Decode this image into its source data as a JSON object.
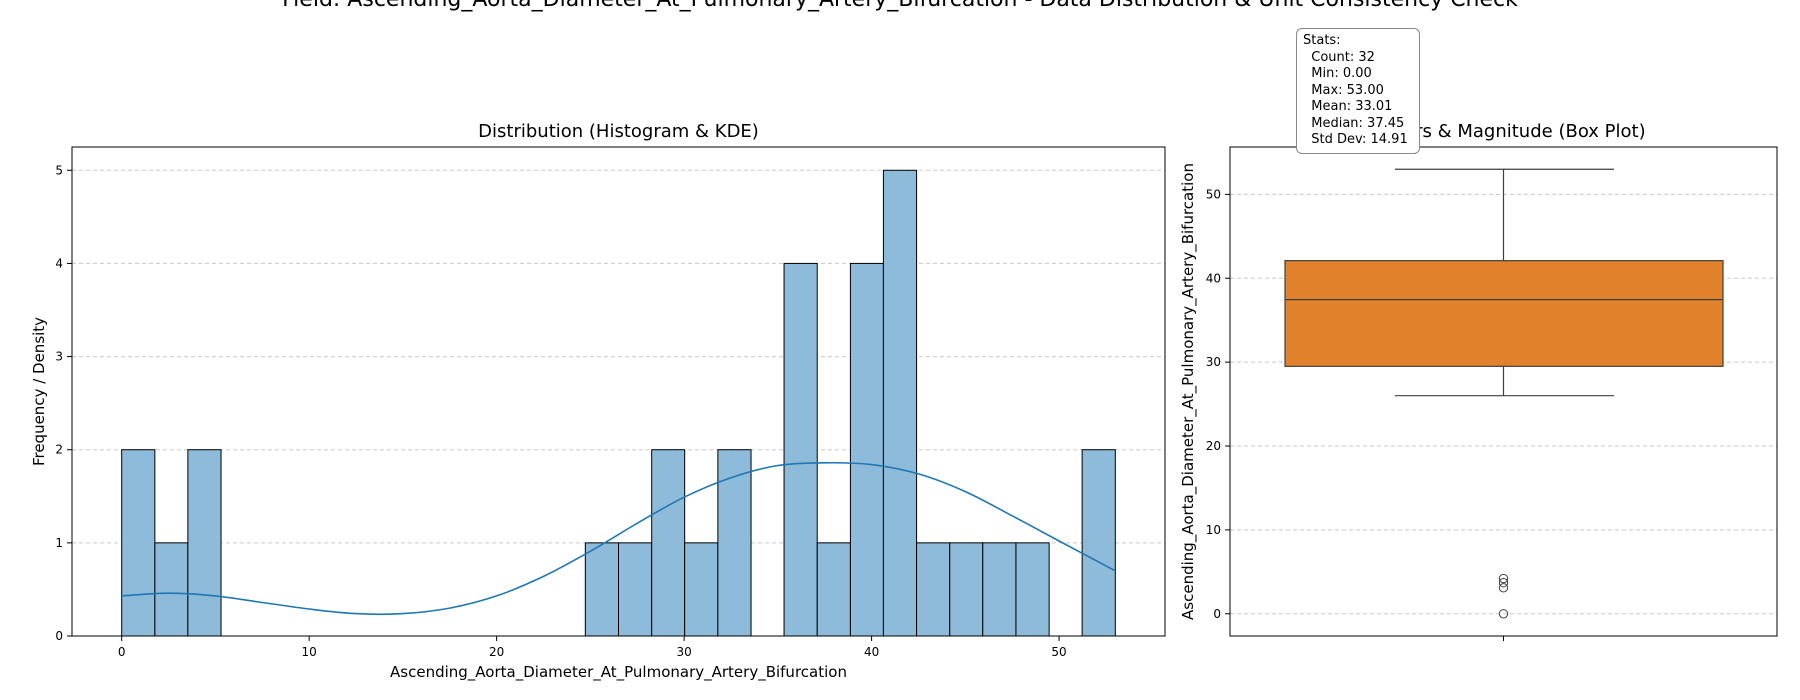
{
  "figure_title": "Field: Ascending_Aorta_Diameter_At_Pulmonary_Artery_Bifurcation - Data Distribution & Unit Consistency Check",
  "stats": {
    "heading": "Stats:",
    "count": "  Count: 32",
    "min": "  Min: 0.00",
    "max": "  Max: 53.00",
    "mean": "  Mean: 33.01",
    "median": "  Median: 37.45",
    "std": "  Std Dev: 14.91"
  },
  "chart_data": [
    {
      "type": "bar",
      "title": "Distribution (Histogram & KDE)",
      "xlabel": "Ascending_Aorta_Diameter_At_Pulmonary_Artery_Bifurcation",
      "ylabel": "Frequency / Density",
      "xlim": [
        -2.65,
        55.65
      ],
      "ylim": [
        0,
        5.25
      ],
      "xticks": [
        0,
        10,
        20,
        30,
        40,
        50
      ],
      "yticks": [
        0,
        1,
        2,
        3,
        4,
        5
      ],
      "grid": "y",
      "bar_color": "#8fbbdb",
      "line_color": "#1f77b4",
      "bins": [
        {
          "x0": 0.0,
          "x1": 1.77,
          "count": 2
        },
        {
          "x0": 1.77,
          "x1": 3.53,
          "count": 1
        },
        {
          "x0": 3.53,
          "x1": 5.3,
          "count": 2
        },
        {
          "x0": 5.3,
          "x1": 7.07,
          "count": 0
        },
        {
          "x0": 7.07,
          "x1": 8.83,
          "count": 0
        },
        {
          "x0": 8.83,
          "x1": 10.6,
          "count": 0
        },
        {
          "x0": 10.6,
          "x1": 12.37,
          "count": 0
        },
        {
          "x0": 12.37,
          "x1": 14.13,
          "count": 0
        },
        {
          "x0": 14.13,
          "x1": 15.9,
          "count": 0
        },
        {
          "x0": 15.9,
          "x1": 17.67,
          "count": 0
        },
        {
          "x0": 17.67,
          "x1": 19.43,
          "count": 0
        },
        {
          "x0": 19.43,
          "x1": 21.2,
          "count": 0
        },
        {
          "x0": 21.2,
          "x1": 22.97,
          "count": 0
        },
        {
          "x0": 22.97,
          "x1": 24.73,
          "count": 0
        },
        {
          "x0": 24.73,
          "x1": 26.5,
          "count": 1
        },
        {
          "x0": 26.5,
          "x1": 28.27,
          "count": 1
        },
        {
          "x0": 28.27,
          "x1": 30.03,
          "count": 2
        },
        {
          "x0": 30.03,
          "x1": 31.8,
          "count": 1
        },
        {
          "x0": 31.8,
          "x1": 33.57,
          "count": 2
        },
        {
          "x0": 33.57,
          "x1": 35.33,
          "count": 0
        },
        {
          "x0": 35.33,
          "x1": 37.1,
          "count": 4
        },
        {
          "x0": 37.1,
          "x1": 38.87,
          "count": 1
        },
        {
          "x0": 38.87,
          "x1": 40.63,
          "count": 4
        },
        {
          "x0": 40.63,
          "x1": 42.4,
          "count": 5
        },
        {
          "x0": 42.4,
          "x1": 44.17,
          "count": 1
        },
        {
          "x0": 44.17,
          "x1": 45.93,
          "count": 1
        },
        {
          "x0": 45.93,
          "x1": 47.7,
          "count": 1
        },
        {
          "x0": 47.7,
          "x1": 49.47,
          "count": 1
        },
        {
          "x0": 49.47,
          "x1": 51.23,
          "count": 0
        },
        {
          "x0": 51.23,
          "x1": 53.0,
          "count": 2
        }
      ],
      "kde": {
        "x": [
          0,
          2.5,
          5,
          7.5,
          10,
          12.5,
          15,
          17.5,
          20,
          22.5,
          25,
          27.5,
          30,
          32.5,
          35,
          37.5,
          40,
          42.5,
          45,
          47.5,
          50,
          53
        ],
        "y": [
          0.43,
          0.46,
          0.43,
          0.36,
          0.29,
          0.24,
          0.24,
          0.3,
          0.43,
          0.64,
          0.91,
          1.21,
          1.49,
          1.7,
          1.83,
          1.86,
          1.84,
          1.74,
          1.55,
          1.29,
          1.02,
          0.7
        ]
      }
    },
    {
      "type": "box",
      "title": "Outliers & Magnitude (Box Plot)",
      "ylabel": "Ascending_Aorta_Diameter_At_Pulmonary_Artery_Bifurcation",
      "ylim": [
        -2.65,
        55.65
      ],
      "yticks": [
        0,
        10,
        20,
        30,
        40,
        50
      ],
      "grid": "y",
      "box_color": "#e1812c",
      "q1": 29.5,
      "median": 37.45,
      "q3": 42.1,
      "whisker_low": 26.0,
      "whisker_high": 53.0,
      "outliers": [
        0.0,
        3.1,
        3.7,
        4.2
      ]
    }
  ]
}
